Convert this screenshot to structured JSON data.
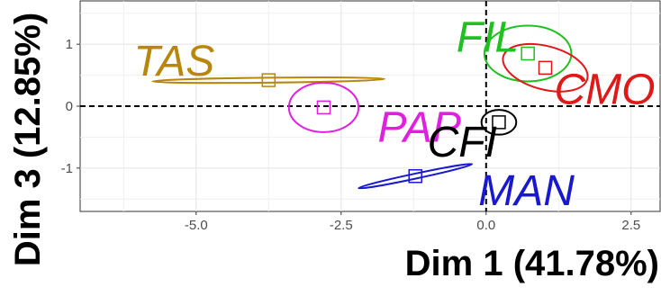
{
  "chart_data": {
    "type": "scatter",
    "title": "",
    "xlabel": "Dim 1 (41.78%)",
    "ylabel": "Dim 3 (12.85%)",
    "xlim": [
      -7.0,
      3.0
    ],
    "ylim": [
      -1.7,
      1.7
    ],
    "x_ticks": [
      -5.0,
      -2.5,
      0.0,
      2.5
    ],
    "x_tick_labels": [
      "-5.0",
      "-2.5",
      "0.0",
      "2.5"
    ],
    "y_ticks": [
      -1,
      0,
      1
    ],
    "y_tick_labels": [
      "-1",
      "0",
      "1"
    ],
    "grid": true,
    "reference_lines": {
      "x": 0,
      "y": 0,
      "style": "dashed"
    },
    "groups": [
      {
        "name": "TAS",
        "color": "#B8860B",
        "centroid": [
          -3.75,
          0.42
        ],
        "ellipse": {
          "rx": 2.0,
          "ry": 0.04,
          "angle": 0.6
        }
      },
      {
        "name": "PAP",
        "color": "#E020E0",
        "centroid": [
          -2.8,
          -0.02
        ],
        "ellipse": {
          "rx": 0.6,
          "ry": 0.4,
          "angle": 0
        }
      },
      {
        "name": "FIL",
        "color": "#20C020",
        "centroid": [
          0.72,
          0.85
        ],
        "ellipse": {
          "rx": 0.75,
          "ry": 0.45,
          "angle": 0
        }
      },
      {
        "name": "CMO",
        "color": "#E01818",
        "centroid": [
          1.02,
          0.62
        ],
        "ellipse": {
          "rx": 0.75,
          "ry": 0.35,
          "angle": -15
        }
      },
      {
        "name": "CFI",
        "color": "#000000",
        "centroid": [
          0.22,
          -0.26
        ],
        "ellipse": {
          "rx": 0.3,
          "ry": 0.2,
          "angle": 0
        }
      },
      {
        "name": "MAN",
        "color": "#1818D0",
        "centroid": [
          -1.22,
          -1.13
        ],
        "ellipse": {
          "rx": 1.0,
          "ry": 0.04,
          "angle": 12
        }
      }
    ]
  }
}
